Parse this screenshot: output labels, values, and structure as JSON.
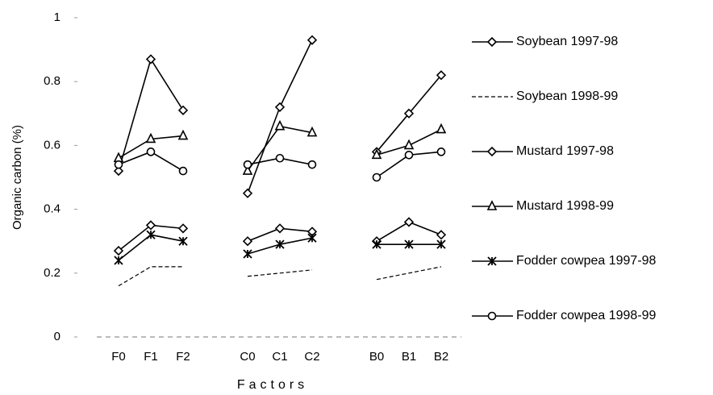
{
  "chart_data": {
    "type": "line",
    "y_label": "Organic carbon (%)",
    "x_label": "Factors",
    "categories": [
      "F0",
      "F1",
      "F2",
      null,
      "C0",
      "C1",
      "C2",
      null,
      "B0",
      "B1",
      "B2"
    ],
    "ylim": [
      0,
      1
    ],
    "yticks": [
      0,
      0.2,
      0.4,
      0.6,
      0.8,
      1
    ],
    "series": [
      {
        "name": "Soybean 1997-98",
        "color": "#000000",
        "marker": "diamond",
        "dash": false,
        "values": [
          0.52,
          0.87,
          0.71,
          null,
          0.45,
          0.72,
          0.93,
          null,
          0.58,
          0.7,
          0.82
        ]
      },
      {
        "name": "Soybean 1998-99",
        "color": "#000000",
        "marker": "none",
        "dash": true,
        "values": [
          0.16,
          0.22,
          0.22,
          null,
          0.19,
          0.2,
          0.21,
          null,
          0.18,
          0.2,
          0.22
        ]
      },
      {
        "name": "Mustard 1997-98",
        "color": "#000000",
        "marker": "diamond",
        "dash": false,
        "values": [
          0.27,
          0.35,
          0.34,
          null,
          0.3,
          0.34,
          0.33,
          null,
          0.3,
          0.36,
          0.32
        ]
      },
      {
        "name": "Mustard 1998-99",
        "color": "#000000",
        "marker": "triangle",
        "dash": false,
        "values": [
          0.56,
          0.62,
          0.63,
          null,
          0.52,
          0.66,
          0.64,
          null,
          0.57,
          0.6,
          0.65
        ]
      },
      {
        "name": "Fodder cowpea 1997-98",
        "color": "#000000",
        "marker": "star",
        "dash": false,
        "values": [
          0.24,
          0.32,
          0.3,
          null,
          0.26,
          0.29,
          0.31,
          null,
          0.29,
          0.29,
          0.29
        ]
      },
      {
        "name": "Fodder cowpea 1998-99",
        "color": "#000000",
        "marker": "circle",
        "dash": false,
        "values": [
          0.54,
          0.58,
          0.52,
          null,
          0.54,
          0.56,
          0.54,
          null,
          0.5,
          0.57,
          0.58
        ]
      }
    ]
  }
}
